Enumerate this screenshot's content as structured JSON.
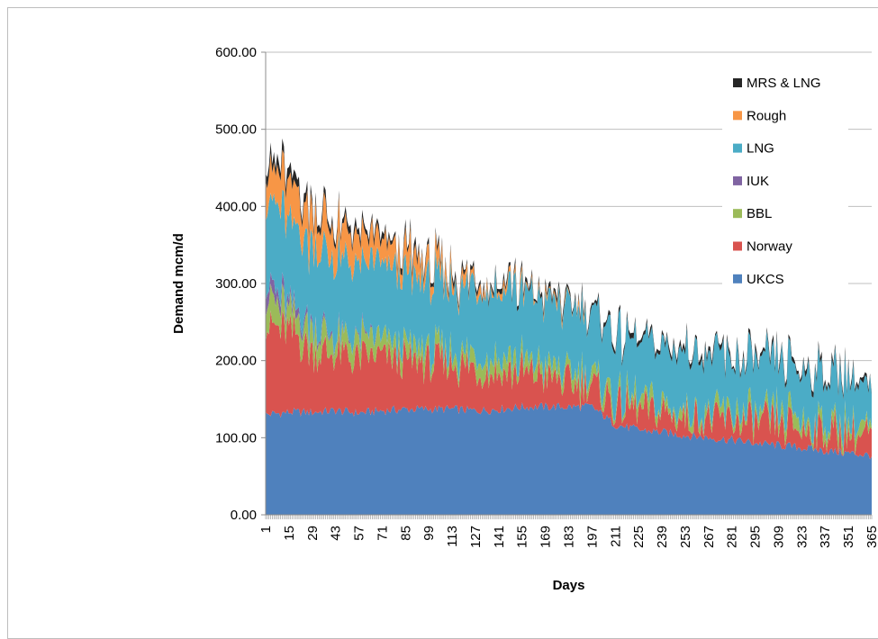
{
  "chart_data": {
    "type": "area",
    "stacked": true,
    "title": "",
    "xlabel": "Days",
    "ylabel": "Demand mcm/d",
    "xlim": [
      1,
      365
    ],
    "ylim": [
      0,
      600
    ],
    "y_ticks": [
      "0.00",
      "100.00",
      "200.00",
      "300.00",
      "400.00",
      "500.00",
      "600.00"
    ],
    "x_ticks": [
      "1",
      "15",
      "29",
      "43",
      "57",
      "71",
      "85",
      "99",
      "113",
      "127",
      "141",
      "155",
      "169",
      "183",
      "197",
      "211",
      "225",
      "239",
      "253",
      "267",
      "281",
      "295",
      "309",
      "323",
      "337",
      "351",
      "365"
    ],
    "grid": "horizontal",
    "legend_position": "right",
    "x": [
      1,
      15,
      29,
      43,
      57,
      71,
      85,
      99,
      113,
      127,
      141,
      155,
      169,
      183,
      197,
      211,
      225,
      239,
      253,
      267,
      281,
      295,
      309,
      323,
      337,
      351,
      365
    ],
    "series": [
      {
        "name": "UKCS",
        "color": "#4f81bd",
        "values": [
          130,
          133,
          133,
          135,
          132,
          135,
          137,
          137,
          137,
          135,
          137,
          140,
          140,
          140,
          140,
          117,
          110,
          107,
          103,
          100,
          97,
          93,
          90,
          87,
          83,
          80,
          77
        ]
      },
      {
        "name": "Norway",
        "color": "#d9534f",
        "values": [
          115,
          105,
          80,
          72,
          70,
          70,
          62,
          60,
          58,
          55,
          50,
          45,
          40,
          30,
          28,
          25,
          25,
          25,
          25,
          25,
          25,
          25,
          25,
          25,
          25,
          25,
          25
        ]
      },
      {
        "name": "BBL",
        "color": "#9bbb59",
        "values": [
          33,
          30,
          27,
          25,
          22,
          20,
          18,
          17,
          15,
          15,
          15,
          15,
          15,
          15,
          13,
          12,
          12,
          12,
          12,
          12,
          12,
          12,
          12,
          12,
          12,
          12,
          12
        ]
      },
      {
        "name": "IUK",
        "color": "#8064a2",
        "values": [
          20,
          10,
          5,
          3,
          2,
          0,
          0,
          0,
          0,
          0,
          0,
          0,
          0,
          0,
          0,
          0,
          0,
          0,
          0,
          0,
          0,
          0,
          0,
          0,
          0,
          0,
          0
        ]
      },
      {
        "name": "LNG",
        "color": "#4bacc6",
        "values": [
          110,
          105,
          100,
          98,
          95,
          95,
          93,
          90,
          90,
          90,
          90,
          88,
          85,
          85,
          82,
          80,
          75,
          75,
          75,
          73,
          70,
          68,
          67,
          66,
          65,
          63,
          50
        ]
      },
      {
        "name": "Rough",
        "color": "#f79646",
        "values": [
          45,
          45,
          42,
          40,
          36,
          30,
          28,
          18,
          12,
          8,
          5,
          3,
          2,
          2,
          0,
          0,
          0,
          0,
          0,
          0,
          0,
          0,
          0,
          0,
          0,
          0,
          0
        ]
      },
      {
        "name": "MRS & LNG",
        "color": "#262626",
        "values": [
          12,
          12,
          10,
          8,
          8,
          7,
          7,
          6,
          6,
          5,
          5,
          5,
          5,
          5,
          5,
          5,
          5,
          5,
          5,
          5,
          5,
          5,
          5,
          5,
          5,
          5,
          5
        ]
      }
    ],
    "legend_order": [
      "MRS & LNG",
      "Rough",
      "LNG",
      "IUK",
      "BBL",
      "Norway",
      "UKCS"
    ]
  }
}
